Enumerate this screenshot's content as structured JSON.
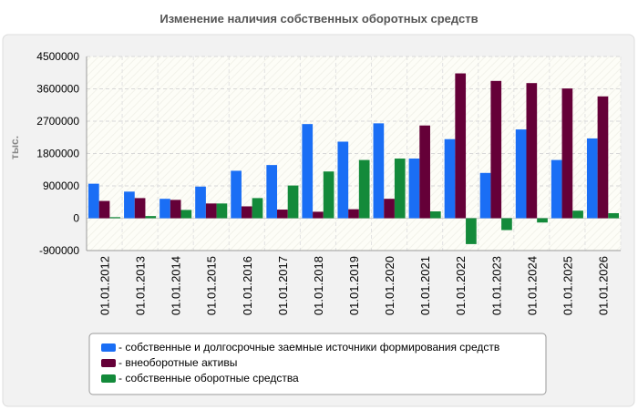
{
  "chart_data": {
    "type": "bar",
    "title": "Изменение наличия собственных оборотных средств",
    "xlabel": "",
    "ylabel": "тыс.",
    "ylim": [
      -900000,
      4500000
    ],
    "yticks": [
      -900000,
      0,
      900000,
      1800000,
      2700000,
      3600000,
      4500000
    ],
    "categories": [
      "01.01.2012",
      "01.01.2013",
      "01.01.2014",
      "01.01.2015",
      "01.01.2016",
      "01.01.2017",
      "01.01.2018",
      "01.01.2019",
      "01.01.2020",
      "01.01.2021",
      "01.01.2022",
      "01.01.2023",
      "01.01.2024",
      "01.01.2025",
      "01.01.2026"
    ],
    "series": [
      {
        "name": "- собственные и долгосрочные заемные источники формирования средств",
        "color": "#1a6ef5",
        "values": [
          960000,
          740000,
          540000,
          880000,
          1320000,
          1480000,
          2620000,
          2130000,
          2640000,
          1660000,
          2200000,
          1260000,
          2470000,
          1620000,
          2220000
        ]
      },
      {
        "name": "- внеоборотные активы",
        "color": "#650038",
        "values": [
          480000,
          560000,
          510000,
          410000,
          330000,
          240000,
          180000,
          250000,
          540000,
          2580000,
          4030000,
          3820000,
          3760000,
          3610000,
          3390000
        ]
      },
      {
        "name": "- собственные оборотные средства",
        "color": "#138a3a",
        "values": [
          30000,
          60000,
          230000,
          410000,
          560000,
          910000,
          1300000,
          1620000,
          1660000,
          190000,
          -720000,
          -330000,
          -120000,
          210000,
          140000
        ]
      }
    ],
    "grid": true,
    "legend_position": "bottom"
  }
}
